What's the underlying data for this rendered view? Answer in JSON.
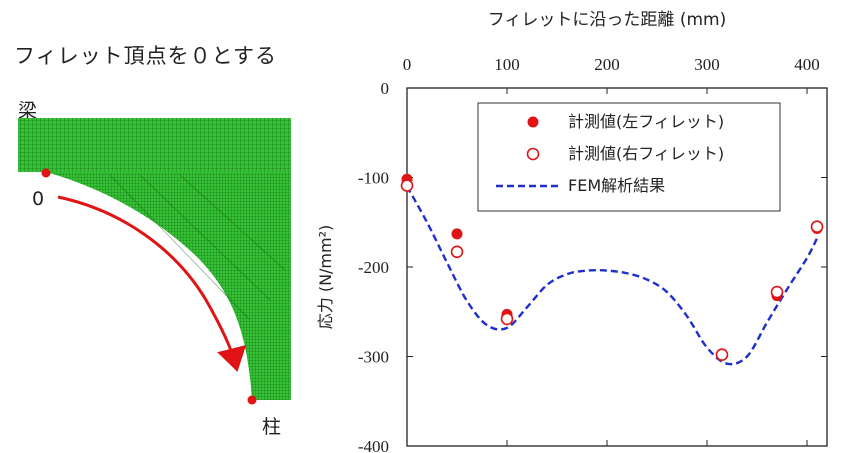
{
  "diagram": {
    "caption": "フィレット頂点を０とする",
    "beam_label": "梁",
    "column_label": "柱",
    "origin_label": "0",
    "mesh_color": "#2db52d",
    "arrow_color": "#e01414",
    "point_color": "#e01414"
  },
  "chart_data": {
    "type": "scatter",
    "title": "",
    "xlabel": "フィレットに沿った距離 (mm)",
    "ylabel": "応力 (N/mm²)",
    "xlim": [
      0,
      420
    ],
    "ylim": [
      -400,
      0
    ],
    "x_ticks": [
      "0",
      "100",
      "200",
      "300",
      "400"
    ],
    "x_tick_values": [
      0,
      100,
      200,
      300,
      400
    ],
    "y_ticks": [
      "0",
      "-100",
      "-200",
      "-300",
      "-400"
    ],
    "y_tick_values": [
      0,
      -100,
      -200,
      -300,
      -400
    ],
    "x_axis_position": "top",
    "grid": false,
    "legend_position": "top-right",
    "series": [
      {
        "name": "計測値(左フィレット)",
        "marker": "filled-circle",
        "color": "#e01414",
        "x": [
          0,
          50,
          100,
          315,
          370,
          410
        ],
        "y": [
          -102,
          -163,
          -253,
          -297,
          -232,
          -157
        ]
      },
      {
        "name": "計測値(右フィレット)",
        "marker": "open-circle",
        "color": "#e01414",
        "x": [
          0,
          50,
          100,
          315,
          370,
          410
        ],
        "y": [
          -109,
          -183,
          -258,
          -298,
          -228,
          -155
        ]
      },
      {
        "name": "FEM解析結果",
        "marker": "dashed-line",
        "color": "#1f2fcc",
        "x": [
          0,
          20,
          40,
          60,
          80,
          100,
          120,
          140,
          160,
          180,
          200,
          220,
          240,
          260,
          280,
          300,
          320,
          340,
          360,
          380,
          400,
          410
        ],
        "y": [
          -110,
          -150,
          -195,
          -238,
          -265,
          -268,
          -245,
          -220,
          -208,
          -204,
          -204,
          -207,
          -214,
          -228,
          -255,
          -290,
          -308,
          -300,
          -262,
          -225,
          -190,
          -168
        ]
      }
    ]
  }
}
